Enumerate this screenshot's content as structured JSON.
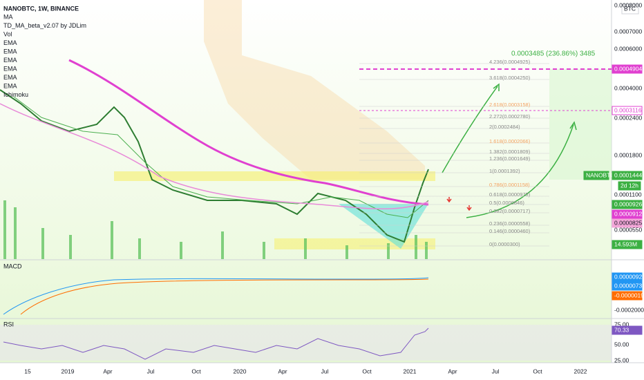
{
  "header": {
    "title": "NANOBTC, 1W, BINANCE",
    "currency": "BTC"
  },
  "indicators": [
    "MA",
    "TD_MA_beta_v2.07 by JDLim",
    "Vol",
    "EMA",
    "EMA",
    "EMA",
    "EMA",
    "EMA",
    "EMA",
    "Ichimoku"
  ],
  "measure": "0.0003485 (236.86%) 3485",
  "price_axis": [
    "0.0008000",
    "0.0007000",
    "0.0006000",
    "0.0004000",
    "0.0002400",
    "0.0001800",
    "0.0001100",
    "0.0000550"
  ],
  "price_tags": {
    "target_high": "0.0004904",
    "target_mid": "0.0003116",
    "symbol": "NANOBTC",
    "last": "0.0001444",
    "countdown": "2d 12h",
    "ema_a": "0.0000926",
    "ema_b": "0.0000912",
    "ema_c": "0.0000825",
    "volume": "14.593M"
  },
  "fib": [
    "4.236(0.0004925)",
    "3.618(0.0004250)",
    "2.618(0.0003158)",
    "2.272(0.0002780)",
    "2(0.0002484)",
    "1.618(0.0002066)",
    "1.382(0.0001809)",
    "1.236(0.0001649)",
    "1(0.0001392)",
    "0.786(0.0001158)",
    "0.618(0.0000975)",
    "0.5(0.0000846)",
    "0.382(0.0000717)",
    "0.236(0.0000558)",
    "0.146(0.0000460)",
    "0(0.0000300)"
  ],
  "macd": {
    "title": "MACD",
    "histogram": "0.0000092",
    "macd": "0.0000073",
    "signal": "-0.0000019",
    "axis": "-0.0002000"
  },
  "rsi": {
    "title": "RSI",
    "upper": "75.00",
    "value": "70.33",
    "mid": "50.00",
    "lower": "25.00"
  },
  "time_axis": [
    "15",
    "2019",
    "Apr",
    "Jul",
    "Oct",
    "2020",
    "Apr",
    "Jul",
    "Oct",
    "2021",
    "Apr",
    "Jul",
    "Oct",
    "2022"
  ]
}
